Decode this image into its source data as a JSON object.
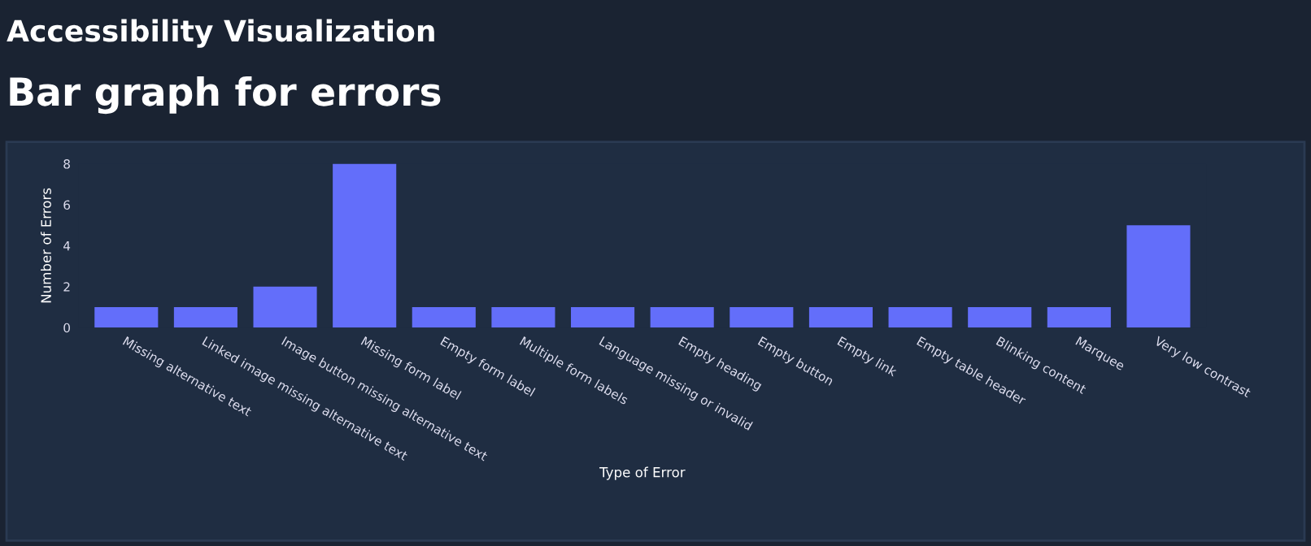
{
  "chart_data": {
    "type": "bar",
    "title": "Accessibility Visualization",
    "subtitle": "Bar graph for errors",
    "xlabel": "Type of Error",
    "ylabel": "Number of Errors",
    "categories": [
      "Missing alternative text",
      "Linked image missing alternative text",
      "Image button missing alternative text",
      "Missing form label",
      "Empty form label",
      "Multiple form labels",
      "Language missing or invalid",
      "Empty heading",
      "Empty button",
      "Empty link",
      "Empty table header",
      "Blinking content",
      "Marquee",
      "Very low contrast"
    ],
    "values": [
      1,
      1,
      2,
      8,
      1,
      1,
      1,
      1,
      1,
      1,
      1,
      1,
      1,
      5
    ],
    "color": "#636efa",
    "ylim": [
      0,
      8
    ],
    "yticks": [
      0,
      2,
      4,
      6,
      8
    ],
    "grid": false
  }
}
